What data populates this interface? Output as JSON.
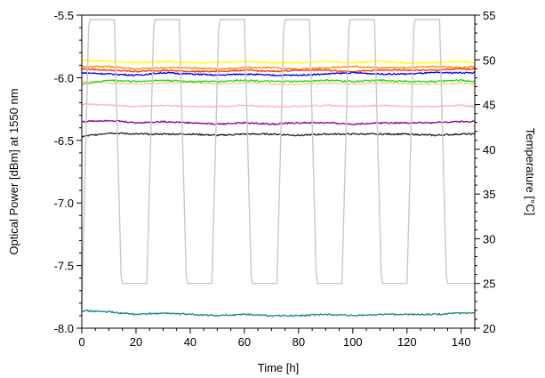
{
  "chart_data": {
    "type": "line",
    "title": "",
    "xlabel": "Time [h]",
    "ylabel": "Optical Power [dBm] at 1550 nm",
    "y2label": "Temperature [°C]",
    "xlim": [
      0,
      145
    ],
    "ylim": [
      -8.0,
      -5.5
    ],
    "y2lim": [
      20,
      55
    ],
    "xticks": [
      0,
      20,
      40,
      60,
      80,
      100,
      120,
      140
    ],
    "xtick_labels": [
      "0",
      "20",
      "40",
      "60",
      "80",
      "100",
      "120",
      "140"
    ],
    "yticks": [
      -8.0,
      -7.5,
      -7.0,
      -6.5,
      -6.0,
      -5.5
    ],
    "ytick_labels": [
      "-8.0",
      "-7.5",
      "-7.0",
      "-6.5",
      "-6.0",
      "-5.5"
    ],
    "y2ticks": [
      20,
      25,
      30,
      35,
      40,
      45,
      50,
      55
    ],
    "y2tick_labels": [
      "20",
      "25",
      "30",
      "35",
      "40",
      "45",
      "50",
      "55"
    ],
    "grid": false,
    "legend": "none",
    "series": [
      {
        "color": "#ffff00",
        "axis": "left",
        "x": [
          0,
          10,
          20,
          30,
          40,
          50,
          60,
          70,
          80,
          90,
          100,
          110,
          120,
          130,
          140,
          145
        ],
        "y": [
          -5.86,
          -5.87,
          -5.88,
          -5.87,
          -5.88,
          -5.88,
          -5.87,
          -5.88,
          -5.88,
          -5.87,
          -5.88,
          -5.87,
          -5.88,
          -5.88,
          -5.87,
          -5.88
        ]
      },
      {
        "color": "#ff8800",
        "axis": "left",
        "x": [
          0,
          10,
          20,
          30,
          40,
          50,
          60,
          70,
          80,
          90,
          100,
          110,
          120,
          130,
          140,
          145
        ],
        "y": [
          -5.91,
          -5.91,
          -5.93,
          -5.92,
          -5.92,
          -5.93,
          -5.92,
          -5.92,
          -5.93,
          -5.92,
          -5.91,
          -5.92,
          -5.92,
          -5.91,
          -5.92,
          -5.91
        ]
      },
      {
        "color": "#ff3300",
        "axis": "left",
        "x": [
          0,
          10,
          20,
          30,
          40,
          50,
          60,
          70,
          80,
          90,
          100,
          110,
          120,
          130,
          140,
          145
        ],
        "y": [
          -5.93,
          -5.94,
          -5.95,
          -5.94,
          -5.95,
          -5.95,
          -5.94,
          -5.95,
          -5.94,
          -5.94,
          -5.95,
          -5.94,
          -5.94,
          -5.94,
          -5.93,
          -5.93
        ]
      },
      {
        "color": "#0000ee",
        "axis": "left",
        "x": [
          0,
          10,
          20,
          30,
          40,
          50,
          60,
          70,
          80,
          90,
          100,
          110,
          120,
          130,
          140,
          145
        ],
        "y": [
          -5.96,
          -5.97,
          -5.98,
          -5.96,
          -5.97,
          -5.98,
          -5.97,
          -5.98,
          -5.98,
          -5.97,
          -5.96,
          -5.97,
          -5.97,
          -5.96,
          -5.96,
          -5.96
        ]
      },
      {
        "color": "#ffcc88",
        "axis": "left",
        "x": [
          0,
          10,
          20,
          30,
          40,
          50,
          60,
          70,
          80,
          90,
          100,
          110,
          120,
          130,
          140,
          145
        ],
        "y": [
          -6.03,
          -6.04,
          -6.05,
          -6.04,
          -6.04,
          -6.05,
          -6.04,
          -6.05,
          -6.05,
          -6.04,
          -6.05,
          -6.04,
          -6.05,
          -6.05,
          -6.04,
          -6.05
        ]
      },
      {
        "color": "#22dd22",
        "axis": "left",
        "x": [
          0,
          10,
          20,
          30,
          40,
          50,
          60,
          70,
          80,
          90,
          100,
          110,
          120,
          130,
          140,
          145
        ],
        "y": [
          -6.05,
          -6.02,
          -6.03,
          -6.02,
          -6.03,
          -6.03,
          -6.02,
          -6.03,
          -6.03,
          -6.02,
          -6.03,
          -6.02,
          -6.03,
          -6.03,
          -6.02,
          -6.03
        ]
      },
      {
        "color": "#ffb6b6",
        "axis": "left",
        "x": [
          0,
          10,
          20,
          30,
          40,
          50,
          60,
          70,
          80,
          90,
          100,
          110,
          120,
          130,
          140,
          145
        ],
        "y": [
          -6.21,
          -6.22,
          -6.23,
          -6.22,
          -6.23,
          -6.23,
          -6.22,
          -6.23,
          -6.23,
          -6.22,
          -6.23,
          -6.22,
          -6.23,
          -6.23,
          -6.22,
          -6.23
        ]
      },
      {
        "color": "#880088",
        "axis": "left",
        "x": [
          0,
          10,
          20,
          30,
          40,
          50,
          60,
          70,
          80,
          90,
          100,
          110,
          120,
          130,
          140,
          145
        ],
        "y": [
          -6.35,
          -6.34,
          -6.36,
          -6.35,
          -6.36,
          -6.37,
          -6.36,
          -6.37,
          -6.36,
          -6.36,
          -6.37,
          -6.36,
          -6.36,
          -6.36,
          -6.35,
          -6.35
        ]
      },
      {
        "color": "#222211",
        "axis": "left",
        "x": [
          0,
          10,
          20,
          30,
          40,
          50,
          60,
          70,
          80,
          90,
          100,
          110,
          120,
          130,
          140,
          145
        ],
        "y": [
          -6.47,
          -6.44,
          -6.45,
          -6.45,
          -6.45,
          -6.46,
          -6.45,
          -6.45,
          -6.46,
          -6.45,
          -6.45,
          -6.45,
          -6.45,
          -6.46,
          -6.45,
          -6.45
        ]
      },
      {
        "color": "#118888",
        "axis": "left",
        "x": [
          0,
          10,
          20,
          30,
          40,
          50,
          60,
          70,
          80,
          90,
          100,
          110,
          120,
          130,
          140,
          145
        ],
        "y": [
          -7.86,
          -7.87,
          -7.89,
          -7.88,
          -7.89,
          -7.9,
          -7.89,
          -7.9,
          -7.9,
          -7.89,
          -7.9,
          -7.89,
          -7.89,
          -7.89,
          -7.88,
          -7.88
        ]
      },
      {
        "color": "#c8c8c8",
        "axis": "right",
        "x": [
          0,
          2.5,
          3,
          12,
          14.5,
          15,
          24,
          26.5,
          27,
          36,
          38.5,
          39,
          48,
          50.5,
          51,
          60,
          62.5,
          63,
          72,
          74.5,
          75,
          84,
          86.5,
          87,
          96,
          98.5,
          99,
          108,
          110.5,
          111,
          120,
          122.5,
          123,
          132,
          134.5,
          135,
          145
        ],
        "y": [
          22,
          53.5,
          54.5,
          54.5,
          26,
          25,
          25,
          53.5,
          54.5,
          54.5,
          26,
          25,
          25,
          53.5,
          54.5,
          54.5,
          26,
          25,
          25,
          53.5,
          54.5,
          54.5,
          26,
          25,
          25,
          53.5,
          54.5,
          54.5,
          26,
          25,
          25,
          53.5,
          54.5,
          54.5,
          26,
          25,
          25
        ]
      }
    ]
  }
}
